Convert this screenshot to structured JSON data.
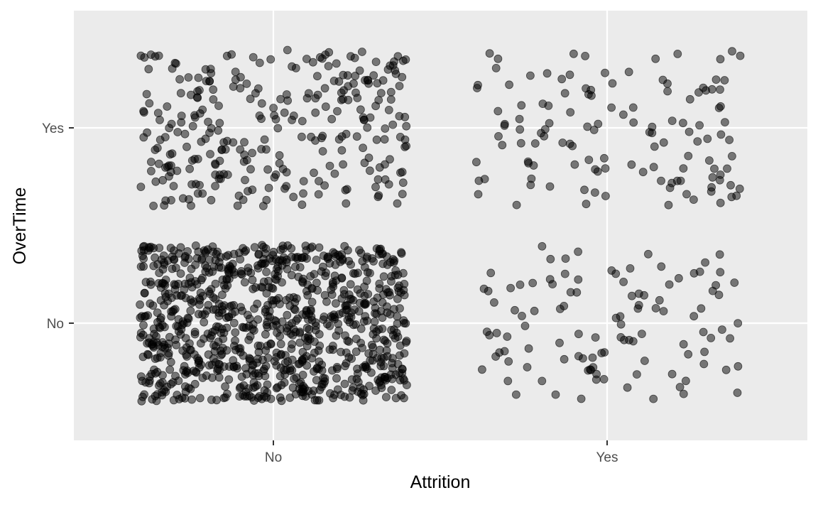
{
  "chart_data": {
    "type": "scatter",
    "jitter": true,
    "title": "",
    "xlabel": "Attrition",
    "ylabel": "OverTime",
    "x_categories": [
      "No",
      "Yes"
    ],
    "y_categories": [
      "No",
      "Yes"
    ],
    "grid": true,
    "legend": "none",
    "point_color": "#000000",
    "point_alpha": 0.5,
    "background": "#ebebeb",
    "grid_color": "#ffffff",
    "groups": [
      {
        "attrition": "No",
        "overtime": "No",
        "count": 944
      },
      {
        "attrition": "No",
        "overtime": "Yes",
        "count": 289
      },
      {
        "attrition": "Yes",
        "overtime": "No",
        "count": 110
      },
      {
        "attrition": "Yes",
        "overtime": "Yes",
        "count": 127
      }
    ]
  }
}
